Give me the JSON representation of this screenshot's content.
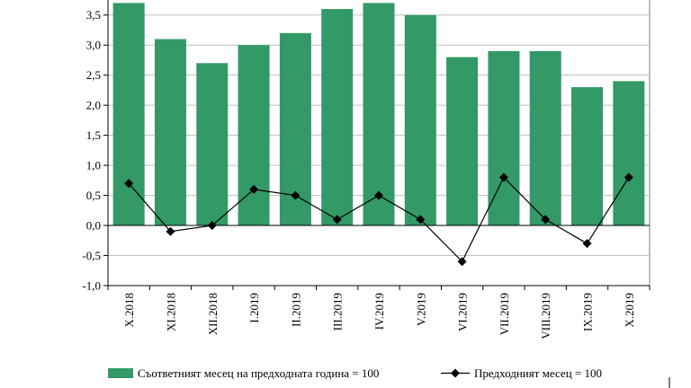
{
  "chart_data": {
    "type": "bar",
    "categories": [
      "X.2018",
      "XI.2018",
      "XII.2018",
      "I.2019",
      "II.2019",
      "III.2019",
      "IV.2019",
      "V.2019",
      "VI.2019",
      "VII.2019",
      "VIII.2019",
      "IX.2019",
      "X.2019"
    ],
    "series": [
      {
        "name": "Съответният месец на предходната година = 100",
        "type": "bar",
        "color": "#339966",
        "values": [
          3.7,
          3.1,
          2.7,
          3.0,
          3.2,
          3.6,
          3.7,
          3.5,
          2.8,
          2.9,
          2.9,
          2.3,
          2.4
        ]
      },
      {
        "name": "Предходният месец = 100",
        "type": "line",
        "color": "#000000",
        "marker": "diamond",
        "values": [
          0.7,
          -0.1,
          0.0,
          0.6,
          0.5,
          0.1,
          0.5,
          0.1,
          -0.6,
          0.8,
          0.1,
          -0.3,
          0.8
        ]
      }
    ],
    "y_ticks": [
      "-1,0",
      "-0,5",
      "0,0",
      "0,5",
      "1,0",
      "1,5",
      "2,0",
      "2,5",
      "3,0",
      "3,5"
    ],
    "y_tick_values": [
      -1.0,
      -0.5,
      0.0,
      0.5,
      1.0,
      1.5,
      2.0,
      2.5,
      3.0,
      3.5
    ],
    "ylim": [
      -1.0,
      3.75
    ],
    "grid": true,
    "legend_position": "bottom",
    "title": "",
    "xlabel": "",
    "ylabel": ""
  }
}
